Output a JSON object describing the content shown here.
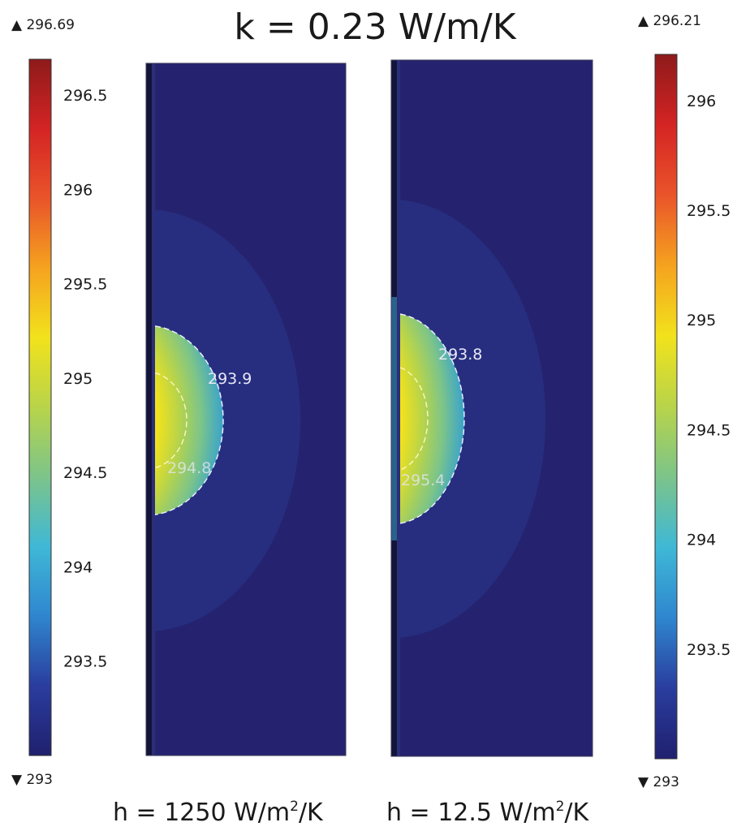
{
  "title": "k = 0.23 W/m/K",
  "colorscale": {
    "stops": [
      "#20206e",
      "#2a3d9e",
      "#2f86cf",
      "#3fb8d6",
      "#7cc48a",
      "#b8d44a",
      "#f2e21c",
      "#f5a31f",
      "#e9542a",
      "#d42424",
      "#8e1a1a"
    ]
  },
  "panels": [
    {
      "caption": {
        "prefix": "h = 1250 W/m",
        "sup": "2",
        "suffix": "/K"
      },
      "colorbar": {
        "max_label": "296.69",
        "min_label": "293",
        "max_value": 296.69,
        "min_value": 293,
        "ticks": [
          "296.5",
          "296",
          "295.5",
          "295",
          "294.5",
          "294",
          "293.5"
        ]
      },
      "contour_labels": [
        "293.9",
        "294.8"
      ]
    },
    {
      "caption": {
        "prefix": "h = 12.5 W/m",
        "sup": "2",
        "suffix": "/K"
      },
      "colorbar": {
        "max_label": "296.21",
        "min_label": "293",
        "max_value": 296.21,
        "min_value": 293,
        "ticks": [
          "296",
          "295.5",
          "295",
          "294.5",
          "294",
          "293.5"
        ]
      },
      "contour_labels": [
        "293.8",
        "295.4"
      ]
    }
  ]
}
